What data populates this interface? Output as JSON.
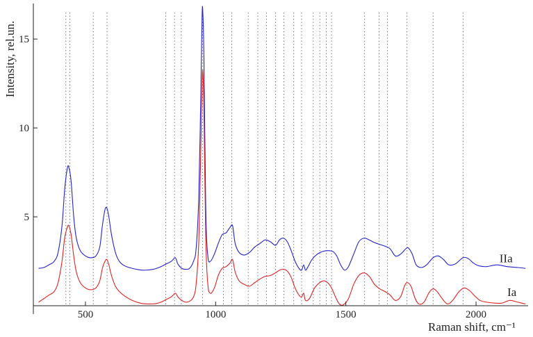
{
  "chart_data": {
    "type": "line",
    "xlabel": "Raman shift, cm⁻¹",
    "ylabel": "Intensity, rel.un.",
    "xlim": [
      300,
      2200
    ],
    "ylim": [
      0,
      17
    ],
    "xticks": [
      500,
      1000,
      1500,
      2000
    ],
    "yticks": [
      5,
      10,
      15
    ],
    "grid": false,
    "reference_lines": [
      425,
      440,
      530,
      583,
      808,
      842,
      868,
      950,
      1030,
      1062,
      1125,
      1162,
      1195,
      1230,
      1262,
      1300,
      1330,
      1375,
      1400,
      1425,
      1445,
      1572,
      1628,
      1660,
      1735,
      1835,
      1950
    ],
    "series": [
      {
        "name": "IIa",
        "color": "#2222cc",
        "x": [
          320,
          340,
          360,
          380,
          395,
          410,
          420,
          430,
          436,
          445,
          455,
          465,
          480,
          500,
          520,
          540,
          555,
          565,
          575,
          582,
          590,
          600,
          615,
          630,
          650,
          680,
          720,
          760,
          790,
          810,
          830,
          845,
          855,
          870,
          885,
          900,
          915,
          925,
          935,
          942,
          948,
          951,
          955,
          962,
          970,
          980,
          995,
          1010,
          1025,
          1040,
          1055,
          1065,
          1075,
          1090,
          1110,
          1130,
          1150,
          1170,
          1190,
          1210,
          1230,
          1245,
          1260,
          1275,
          1290,
          1305,
          1320,
          1330,
          1338,
          1345,
          1355,
          1370,
          1390,
          1410,
          1430,
          1450,
          1465,
          1480,
          1495,
          1510,
          1530,
          1550,
          1570,
          1590,
          1610,
          1630,
          1650,
          1670,
          1690,
          1710,
          1730,
          1740,
          1755,
          1770,
          1790,
          1810,
          1835,
          1855,
          1875,
          1895,
          1920,
          1950,
          1970,
          1990,
          2010,
          2040,
          2080,
          2120,
          2160,
          2190
        ],
        "y": [
          2.1,
          2.15,
          2.3,
          2.5,
          3.0,
          4.5,
          6.5,
          7.7,
          7.8,
          7.0,
          5.0,
          3.8,
          3.1,
          2.8,
          2.7,
          2.8,
          3.3,
          4.5,
          5.4,
          5.5,
          5.0,
          4.0,
          3.0,
          2.5,
          2.25,
          2.1,
          2.0,
          2.05,
          2.2,
          2.35,
          2.5,
          2.7,
          2.35,
          2.1,
          2.05,
          2.1,
          2.5,
          3.2,
          6.0,
          11.0,
          16.3,
          16.4,
          14.0,
          5.5,
          2.8,
          2.5,
          2.9,
          3.5,
          4.0,
          4.1,
          4.4,
          4.5,
          3.5,
          3.0,
          2.85,
          3.0,
          3.3,
          3.5,
          3.7,
          3.6,
          3.4,
          3.7,
          3.8,
          3.6,
          3.1,
          2.5,
          2.1,
          2.0,
          2.3,
          2.0,
          2.2,
          2.6,
          2.9,
          3.05,
          3.1,
          3.05,
          2.8,
          2.3,
          2.0,
          2.2,
          2.9,
          3.6,
          3.8,
          3.7,
          3.55,
          3.45,
          3.35,
          3.2,
          2.8,
          2.9,
          3.2,
          3.25,
          2.9,
          2.3,
          2.15,
          2.3,
          2.7,
          2.8,
          2.6,
          2.3,
          2.35,
          2.7,
          2.65,
          2.4,
          2.25,
          2.2,
          2.3,
          2.2,
          2.15,
          2.1
        ]
      },
      {
        "name": "Ia",
        "color": "#dd2222",
        "x": [
          320,
          340,
          360,
          380,
          395,
          410,
          420,
          430,
          436,
          445,
          455,
          465,
          480,
          500,
          520,
          540,
          555,
          565,
          575,
          582,
          590,
          600,
          615,
          630,
          650,
          680,
          710,
          740,
          770,
          790,
          810,
          830,
          845,
          855,
          870,
          885,
          900,
          915,
          925,
          935,
          942,
          948,
          951,
          955,
          962,
          970,
          980,
          995,
          1010,
          1025,
          1040,
          1055,
          1065,
          1075,
          1090,
          1110,
          1130,
          1150,
          1170,
          1190,
          1210,
          1230,
          1245,
          1260,
          1275,
          1290,
          1305,
          1320,
          1330,
          1338,
          1345,
          1360,
          1380,
          1400,
          1415,
          1430,
          1445,
          1460,
          1475,
          1490,
          1510,
          1530,
          1550,
          1570,
          1590,
          1610,
          1630,
          1650,
          1670,
          1690,
          1710,
          1725,
          1735,
          1750,
          1765,
          1780,
          1800,
          1820,
          1835,
          1850,
          1870,
          1890,
          1910,
          1935,
          1955,
          1975,
          1995,
          2015,
          2040,
          2070,
          2100,
          2130,
          2160,
          2190
        ],
        "y": [
          0.2,
          0.4,
          0.6,
          0.8,
          1.3,
          2.5,
          3.8,
          4.4,
          4.5,
          4.0,
          2.8,
          1.9,
          1.3,
          1.0,
          0.9,
          1.0,
          1.4,
          2.1,
          2.5,
          2.6,
          2.3,
          1.7,
          1.1,
          0.8,
          0.55,
          0.3,
          0.15,
          0.1,
          0.12,
          0.2,
          0.35,
          0.5,
          0.7,
          0.5,
          0.3,
          0.2,
          0.25,
          0.5,
          1.2,
          3.5,
          8.0,
          12.5,
          13.1,
          11.0,
          3.8,
          1.2,
          0.7,
          1.0,
          1.7,
          2.1,
          2.2,
          2.4,
          2.6,
          1.9,
          1.4,
          1.2,
          1.1,
          1.3,
          1.5,
          1.65,
          1.7,
          1.85,
          2.0,
          2.05,
          1.95,
          1.6,
          1.0,
          0.6,
          0.5,
          0.7,
          0.3,
          0.4,
          1.0,
          1.3,
          1.4,
          1.3,
          1.0,
          0.5,
          0.1,
          0.05,
          0.4,
          1.2,
          1.7,
          1.85,
          1.65,
          1.2,
          0.95,
          0.8,
          0.6,
          0.3,
          0.5,
          1.1,
          1.3,
          1.1,
          0.45,
          0.1,
          0.2,
          0.75,
          0.95,
          0.8,
          0.4,
          0.1,
          0.3,
          0.8,
          1.0,
          0.85,
          0.55,
          0.3,
          0.2,
          0.15,
          0.15,
          0.3,
          0.2,
          0.1
        ]
      }
    ],
    "annotations": [
      {
        "text": "IIa",
        "series": "IIa",
        "x": 2090,
        "y": 2.45
      },
      {
        "text": "Ia",
        "series": "Ia",
        "x": 2120,
        "y": 0.55
      }
    ]
  }
}
